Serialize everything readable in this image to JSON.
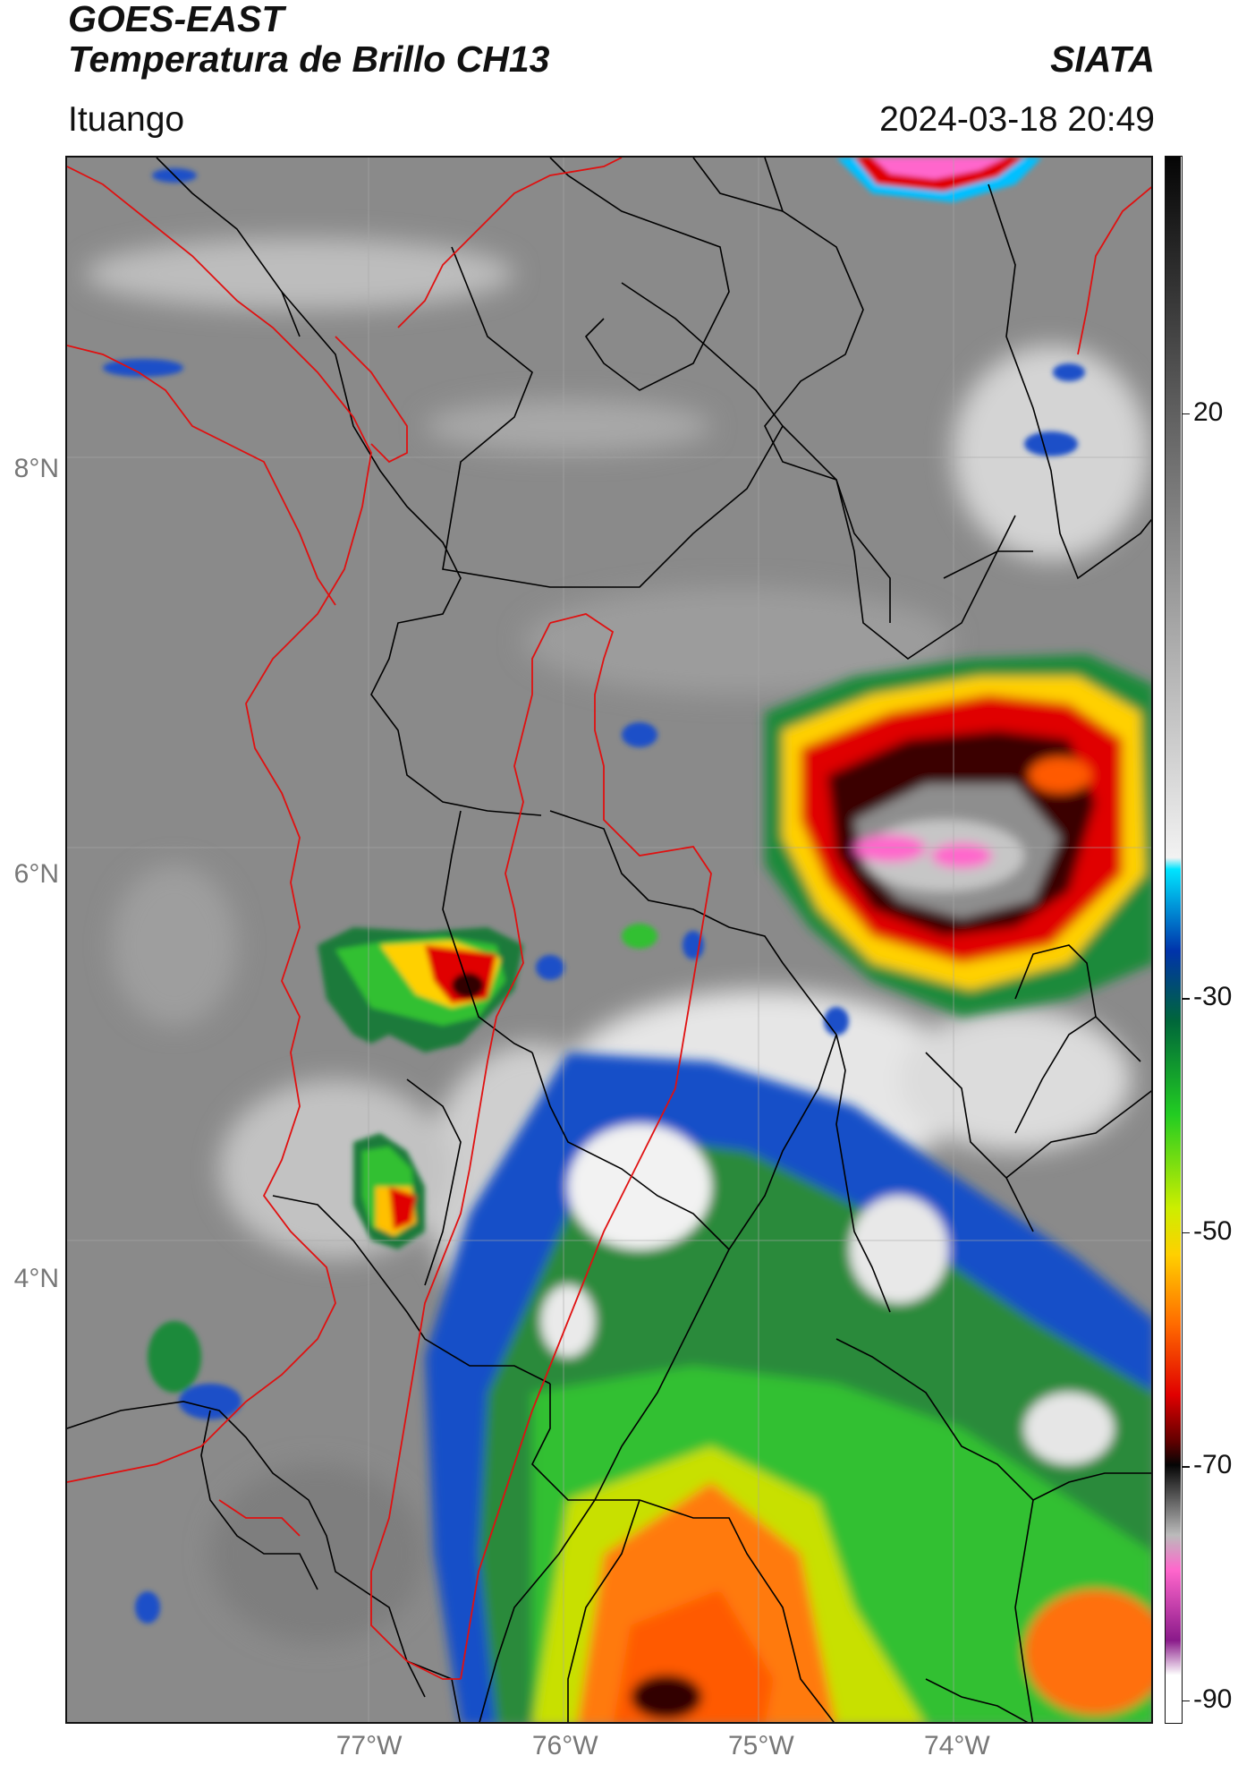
{
  "header": {
    "title_line1": "GOES-EAST",
    "title_line2": "Temperatura de Brillo CH13",
    "organization": "SIATA",
    "region": "Ituango",
    "timestamp": "2024-03-18 20:49"
  },
  "map": {
    "lat_labels": [
      {
        "text": "8°N",
        "value": 8
      },
      {
        "text": "6°N",
        "value": 6
      },
      {
        "text": "4°N",
        "value": 4
      }
    ],
    "lon_labels": [
      {
        "text": "77°W",
        "value": -77
      },
      {
        "text": "76°W",
        "value": -76
      },
      {
        "text": "75°W",
        "value": -75
      },
      {
        "text": "74°W",
        "value": -74
      }
    ],
    "colors": {
      "background_gray": "#8a8a8a",
      "department_border": "#000000",
      "basin_outline": "#e01010",
      "gridline": "#aaaaaa"
    }
  },
  "colorbar": {
    "tick_labels": [
      {
        "text": "20",
        "value": 20
      },
      {
        "text": "-30",
        "value": -30
      },
      {
        "text": "-50",
        "value": -50
      },
      {
        "text": "-70",
        "value": -70
      },
      {
        "text": "-90",
        "value": -90
      }
    ],
    "range": [
      -92,
      42
    ],
    "stops": [
      {
        "value": 42,
        "color": "#050505"
      },
      {
        "value": 20,
        "color": "#606060"
      },
      {
        "value": -18,
        "color": "#f2f2f2"
      },
      {
        "value": -19,
        "color": "#00e5ff"
      },
      {
        "value": -26,
        "color": "#0033aa"
      },
      {
        "value": -32,
        "color": "#00663a"
      },
      {
        "value": -40,
        "color": "#22cc22"
      },
      {
        "value": -48,
        "color": "#ccee00"
      },
      {
        "value": -52,
        "color": "#ffd000"
      },
      {
        "value": -58,
        "color": "#ff6a00"
      },
      {
        "value": -64,
        "color": "#e00000"
      },
      {
        "value": -68,
        "color": "#600000"
      },
      {
        "value": -70,
        "color": "#050505"
      },
      {
        "value": -76,
        "color": "#bbbbbb"
      },
      {
        "value": -79,
        "color": "#ff66cc"
      },
      {
        "value": -85,
        "color": "#8a1a8a"
      },
      {
        "value": -88,
        "color": "#ffffff"
      }
    ]
  }
}
